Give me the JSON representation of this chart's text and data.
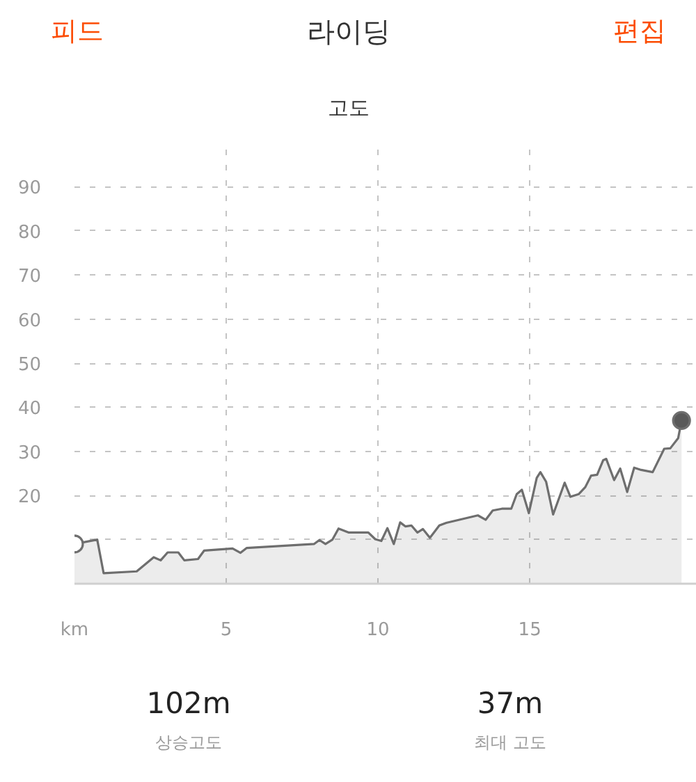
{
  "chart_data": {
    "type": "area",
    "title": "라이딩",
    "subtitle": "고도",
    "x": [
      0,
      0.75,
      0.96,
      2.05,
      2.61,
      2.84,
      3.07,
      3.42,
      3.62,
      4.07,
      4.27,
      5.21,
      5.47,
      5.67,
      7.89,
      8.07,
      8.27,
      8.5,
      8.7,
      9.04,
      9.68,
      9.91,
      10.11,
      10.31,
      10.52,
      10.73,
      10.9,
      11.1,
      11.3,
      11.48,
      11.71,
      12.02,
      12.25,
      13.29,
      13.55,
      13.78,
      14.08,
      14.39,
      14.57,
      14.74,
      14.97,
      15.23,
      15.35,
      15.54,
      15.77,
      16.15,
      16.34,
      16.61,
      16.83,
      17.02,
      17.22,
      17.42,
      17.52,
      17.78,
      17.98,
      18.21,
      18.44,
      18.67,
      19.05,
      19.43,
      19.63,
      19.89,
      20.0
    ],
    "series": [
      {
        "color": "#6e6e6e",
        "values": [
          9,
          10,
          2.4,
          2.8,
          6,
          5.3,
          7.1,
          7.1,
          5.3,
          5.6,
          7.5,
          8,
          7,
          8.1,
          9,
          9.9,
          9,
          10,
          12.5,
          11.6,
          11.6,
          10.1,
          9.7,
          12.6,
          9,
          13.9,
          13,
          13.2,
          11.6,
          12.4,
          10.4,
          13.2,
          13.8,
          15.5,
          14.5,
          16.6,
          17,
          17,
          20.3,
          21.3,
          16,
          24,
          25.3,
          23.1,
          15.7,
          22.9,
          19.7,
          20.3,
          21.9,
          24.5,
          24.7,
          28,
          28.3,
          23.5,
          26.1,
          20.8,
          26.3,
          25.8,
          25.3,
          30.6,
          30.7,
          33,
          37
        ]
      },
      {
        "type": "scatter",
        "marker": "circle",
        "x": [
          0,
          20.0
        ],
        "values": [
          9,
          37
        ],
        "colors": [
          "#ffffff",
          "#595959"
        ]
      }
    ],
    "xlim": [
      0,
      20.5
    ],
    "ylim": [
      0,
      100
    ],
    "xticks": [
      {
        "value": 0,
        "label": "km"
      },
      5,
      10,
      15
    ],
    "yticks": [
      {
        "value": 0,
        "label": null
      },
      {
        "value": 10,
        "label": null
      },
      20,
      30,
      40,
      50,
      60,
      70,
      80,
      90
    ],
    "grid": true,
    "annotations": [
      "피드",
      "편집",
      "102m",
      "상승고도",
      "37m",
      "최대 고도"
    ]
  }
}
